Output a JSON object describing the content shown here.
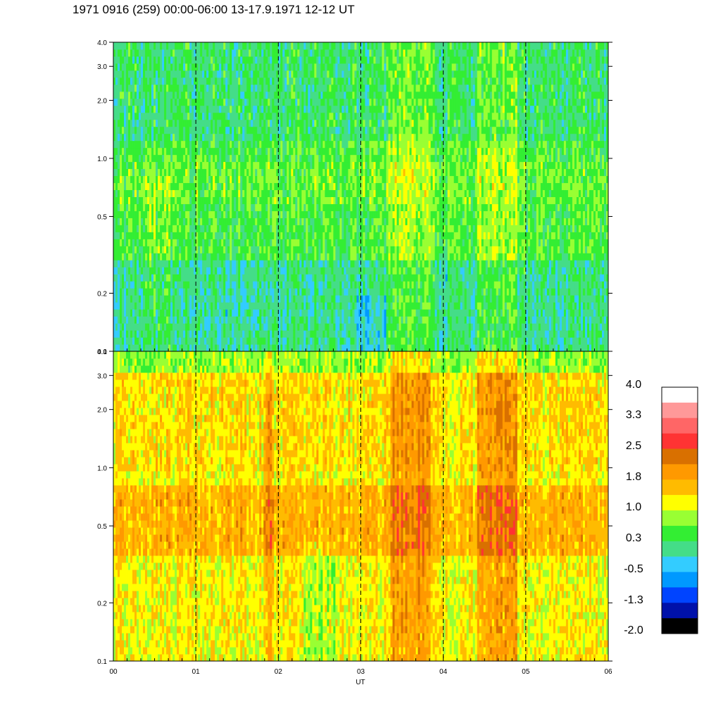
{
  "title": "1971 0916 (259) 00:00-06:00 13-17.9.1971  12-12 UT",
  "chart_data": [
    {
      "type": "heatmap",
      "panel": "upper",
      "x_ticks": [
        "00",
        "01",
        "02",
        "03",
        "04",
        "05",
        "06"
      ],
      "x_range": [
        0,
        6
      ],
      "y_scale": "log",
      "y_range": [
        0.1,
        4.0
      ],
      "y_ticks": [
        {
          "value": 0.1,
          "label": "0.1"
        },
        {
          "value": 0.2,
          "label": "0.2"
        },
        {
          "value": 0.5,
          "label": "0.5"
        },
        {
          "value": 1.0,
          "label": "1.0"
        },
        {
          "value": 2.0,
          "label": "2.0"
        },
        {
          "value": 3.0,
          "label": "3.0"
        },
        {
          "value": 4.0,
          "label": "4.0"
        }
      ],
      "hour_markers": [
        1,
        2,
        3,
        4,
        5
      ],
      "dominant_levels": "-0.5 to 1.0 (blue-green-yellow)"
    },
    {
      "type": "heatmap",
      "panel": "lower",
      "x_ticks": [
        "00",
        "01",
        "02",
        "03",
        "04",
        "05",
        "06"
      ],
      "x_range": [
        0,
        6
      ],
      "xlabel": "UT",
      "y_scale": "log",
      "y_range": [
        0.1,
        4.0
      ],
      "y_ticks": [
        {
          "value": 0.1,
          "label": "0.1"
        },
        {
          "value": 0.2,
          "label": "0.2"
        },
        {
          "value": 0.5,
          "label": "0.5"
        },
        {
          "value": 1.0,
          "label": "1.0"
        },
        {
          "value": 2.0,
          "label": "2.0"
        },
        {
          "value": 3.0,
          "label": "3.0"
        },
        {
          "value": 4.0,
          "label": "4.0"
        }
      ],
      "hour_markers": [
        1,
        2,
        3,
        4,
        5
      ],
      "dominant_levels": "0.3 to 2.5 (green-yellow-orange-red)"
    }
  ],
  "colorbar": {
    "labels": [
      "4.0",
      "3.3",
      "2.5",
      "1.8",
      "1.0",
      "0.3",
      "-0.5",
      "-1.3",
      "-2.0"
    ],
    "colors": [
      "#ffffff",
      "#ff9999",
      "#ff6666",
      "#ff3333",
      "#d97000",
      "#ff9900",
      "#ffbb00",
      "#ffff00",
      "#99ff33",
      "#33ee33",
      "#44dd88",
      "#33ccff",
      "#0099ff",
      "#0044ff",
      "#0011aa",
      "#000000"
    ]
  }
}
